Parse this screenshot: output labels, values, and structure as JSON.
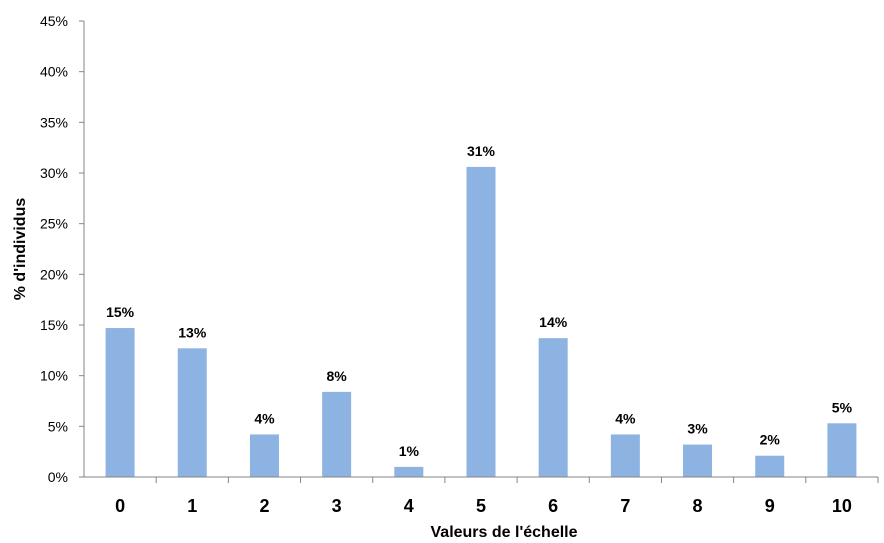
{
  "chart_data": {
    "type": "bar",
    "title": "",
    "xlabel": "Valeurs de l'échelle",
    "ylabel": "% d'individus",
    "categories": [
      "0",
      "1",
      "2",
      "3",
      "4",
      "5",
      "6",
      "7",
      "8",
      "9",
      "10"
    ],
    "values": [
      14.7,
      12.7,
      4.2,
      8.4,
      1.0,
      30.6,
      13.7,
      4.2,
      3.2,
      2.1,
      5.3
    ],
    "data_labels": [
      "15%",
      "13%",
      "4%",
      "8%",
      "1%",
      "31%",
      "14%",
      "4%",
      "3%",
      "2%",
      "5%"
    ],
    "ylim": [
      0,
      45
    ],
    "yticks": [
      0,
      5,
      10,
      15,
      20,
      25,
      30,
      35,
      40,
      45
    ],
    "ytick_labels": [
      "0%",
      "5%",
      "10%",
      "15%",
      "20%",
      "25%",
      "30%",
      "35%",
      "40%",
      "45%"
    ],
    "grid": false,
    "legend": "none",
    "bar_color": "#8DB3E2"
  }
}
